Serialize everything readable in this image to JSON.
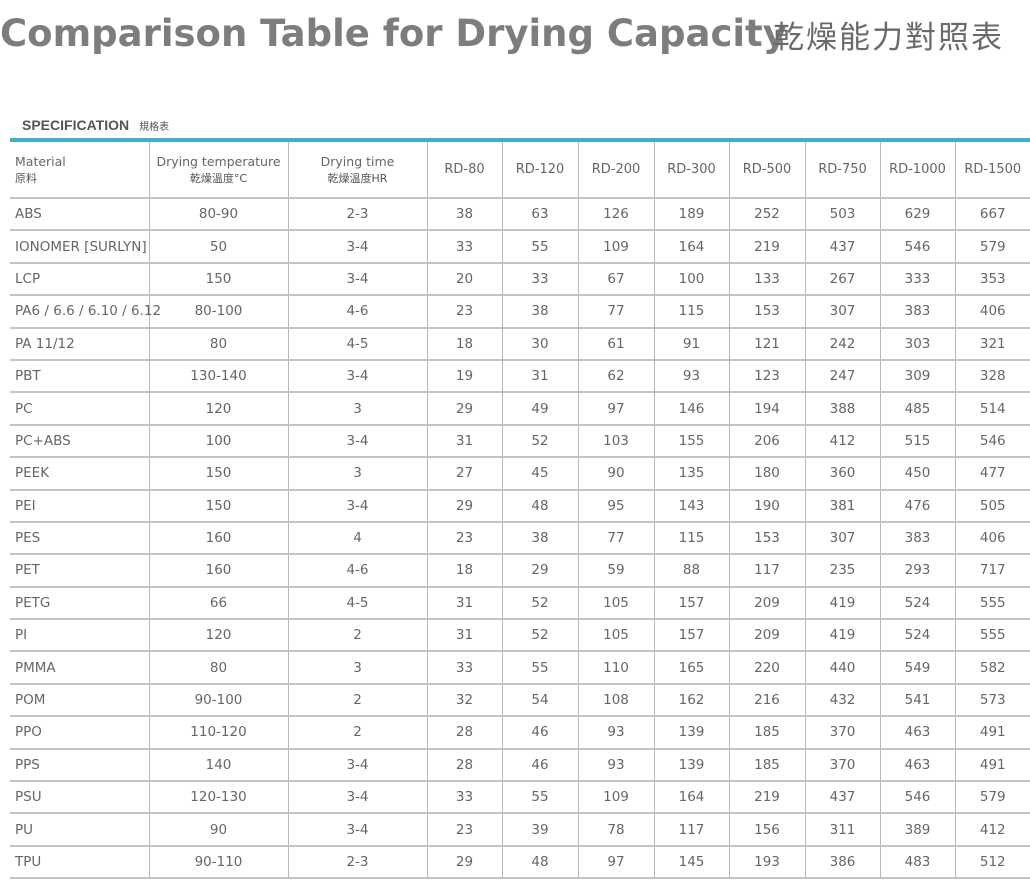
{
  "title_en": "Comparison Table for Drying Capacity",
  "title_zh": "乾燥能力對照表",
  "spec_label_en": "SPECIFICATION",
  "spec_label_zh": "規格表",
  "colors": {
    "accent": "#3fb0c9",
    "title": "#7d7d7d",
    "text": "#666666",
    "grid": "#c4c4c4"
  },
  "headers": {
    "material": {
      "en": "Material",
      "zh": "原料"
    },
    "temperature": {
      "en": "Drying temperature",
      "zh": "乾燥溫度°C"
    },
    "time": {
      "en": "Drying time",
      "zh": "乾燥溫度HR"
    },
    "models": [
      "RD-80",
      "RD-120",
      "RD-200",
      "RD-300",
      "RD-500",
      "RD-750",
      "RD-1000",
      "RD-1500"
    ]
  },
  "rows": [
    {
      "material": "ABS",
      "temp": "80-90",
      "time": "2-3",
      "values": [
        "38",
        "63",
        "126",
        "189",
        "252",
        "503",
        "629",
        "667"
      ]
    },
    {
      "material": "IONOMER [SURLYN]",
      "temp": "50",
      "time": "3-4",
      "values": [
        "33",
        "55",
        "109",
        "164",
        "219",
        "437",
        "546",
        "579"
      ]
    },
    {
      "material": "LCP",
      "temp": "150",
      "time": "3-4",
      "values": [
        "20",
        "33",
        "67",
        "100",
        "133",
        "267",
        "333",
        "353"
      ]
    },
    {
      "material": "PA6 / 6.6 / 6.10 / 6.12",
      "temp": "80-100",
      "time": "4-6",
      "values": [
        "23",
        "38",
        "77",
        "115",
        "153",
        "307",
        "383",
        "406"
      ]
    },
    {
      "material": "PA 11/12",
      "temp": "80",
      "time": "4-5",
      "values": [
        "18",
        "30",
        "61",
        "91",
        "121",
        "242",
        "303",
        "321"
      ]
    },
    {
      "material": "PBT",
      "temp": "130-140",
      "time": "3-4",
      "values": [
        "19",
        "31",
        "62",
        "93",
        "123",
        "247",
        "309",
        "328"
      ]
    },
    {
      "material": "PC",
      "temp": "120",
      "time": "3",
      "values": [
        "29",
        "49",
        "97",
        "146",
        "194",
        "388",
        "485",
        "514"
      ]
    },
    {
      "material": "PC+ABS",
      "temp": "100",
      "time": "3-4",
      "values": [
        "31",
        "52",
        "103",
        "155",
        "206",
        "412",
        "515",
        "546"
      ]
    },
    {
      "material": "PEEK",
      "temp": "150",
      "time": "3",
      "values": [
        "27",
        "45",
        "90",
        "135",
        "180",
        "360",
        "450",
        "477"
      ]
    },
    {
      "material": "PEI",
      "temp": "150",
      "time": "3-4",
      "values": [
        "29",
        "48",
        "95",
        "143",
        "190",
        "381",
        "476",
        "505"
      ]
    },
    {
      "material": "PES",
      "temp": "160",
      "time": "4",
      "values": [
        "23",
        "38",
        "77",
        "115",
        "153",
        "307",
        "383",
        "406"
      ]
    },
    {
      "material": "PET",
      "temp": "160",
      "time": "4-6",
      "values": [
        "18",
        "29",
        "59",
        "88",
        "117",
        "235",
        "293",
        "717"
      ]
    },
    {
      "material": "PETG",
      "temp": "66",
      "time": "4-5",
      "values": [
        "31",
        "52",
        "105",
        "157",
        "209",
        "419",
        "524",
        "555"
      ]
    },
    {
      "material": "PI",
      "temp": "120",
      "time": "2",
      "values": [
        "31",
        "52",
        "105",
        "157",
        "209",
        "419",
        "524",
        "555"
      ]
    },
    {
      "material": "PMMA",
      "temp": "80",
      "time": "3",
      "values": [
        "33",
        "55",
        "110",
        "165",
        "220",
        "440",
        "549",
        "582"
      ]
    },
    {
      "material": "POM",
      "temp": "90-100",
      "time": "2",
      "values": [
        "32",
        "54",
        "108",
        "162",
        "216",
        "432",
        "541",
        "573"
      ]
    },
    {
      "material": "PPO",
      "temp": "110-120",
      "time": "2",
      "values": [
        "28",
        "46",
        "93",
        "139",
        "185",
        "370",
        "463",
        "491"
      ]
    },
    {
      "material": "PPS",
      "temp": "140",
      "time": "3-4",
      "values": [
        "28",
        "46",
        "93",
        "139",
        "185",
        "370",
        "463",
        "491"
      ]
    },
    {
      "material": "PSU",
      "temp": "120-130",
      "time": "3-4",
      "values": [
        "33",
        "55",
        "109",
        "164",
        "219",
        "437",
        "546",
        "579"
      ]
    },
    {
      "material": "PU",
      "temp": "90",
      "time": "3-4",
      "values": [
        "23",
        "39",
        "78",
        "117",
        "156",
        "311",
        "389",
        "412"
      ]
    },
    {
      "material": "TPU",
      "temp": "90-110",
      "time": "2-3",
      "values": [
        "29",
        "48",
        "97",
        "145",
        "193",
        "386",
        "483",
        "512"
      ]
    }
  ]
}
